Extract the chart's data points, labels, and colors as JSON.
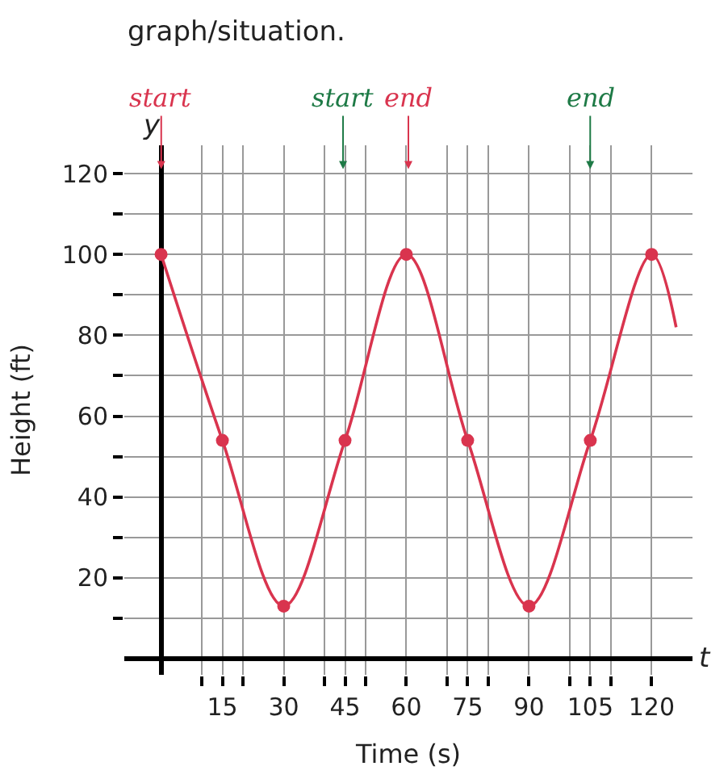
{
  "chart_data": {
    "type": "line",
    "xlabel": "Time (s)",
    "ylabel": "Height (ft)",
    "xlim": [
      -9,
      130
    ],
    "ylim": [
      -4,
      127
    ],
    "xticks": [
      {
        "value": 10,
        "label": null
      },
      {
        "value": 15,
        "label": "15"
      },
      {
        "value": 20,
        "label": null
      },
      30,
      {
        "value": 40,
        "label": null
      },
      {
        "value": 45,
        "label": "45"
      },
      {
        "value": 50,
        "label": null
      },
      60,
      {
        "value": 70,
        "label": null
      },
      {
        "value": 75,
        "label": "75"
      },
      {
        "value": 80,
        "label": null
      },
      90,
      {
        "value": 100,
        "label": null
      },
      {
        "value": 105,
        "label": "105"
      },
      {
        "value": 110,
        "label": null
      },
      120
    ],
    "yticks": [
      {
        "value": 10,
        "label": null
      },
      20,
      {
        "value": 30,
        "label": null
      },
      40,
      {
        "value": 50,
        "label": null
      },
      60,
      {
        "value": 70,
        "label": null
      },
      80,
      {
        "value": 90,
        "label": null
      },
      100,
      {
        "value": 110,
        "label": null
      },
      120
    ],
    "grid": true,
    "series": [
      {
        "color": "#d9344e",
        "marker": "none",
        "x": [
          0,
          15,
          30,
          45,
          60,
          75,
          90,
          105,
          120,
          126
        ],
        "values": [
          100,
          54,
          13,
          54,
          100,
          54,
          13,
          54,
          100,
          82
        ]
      },
      {
        "type": "scatter",
        "color": "#d9344e",
        "marker": "circle",
        "x": [
          0,
          15,
          30,
          45,
          60,
          75,
          90,
          105,
          120
        ],
        "values": [
          100,
          54,
          13,
          54,
          100,
          54,
          13,
          54,
          100
        ]
      }
    ],
    "annotations": [
      "graph/situation.",
      "start",
      "start",
      "end",
      "end",
      "y",
      "t"
    ]
  }
}
